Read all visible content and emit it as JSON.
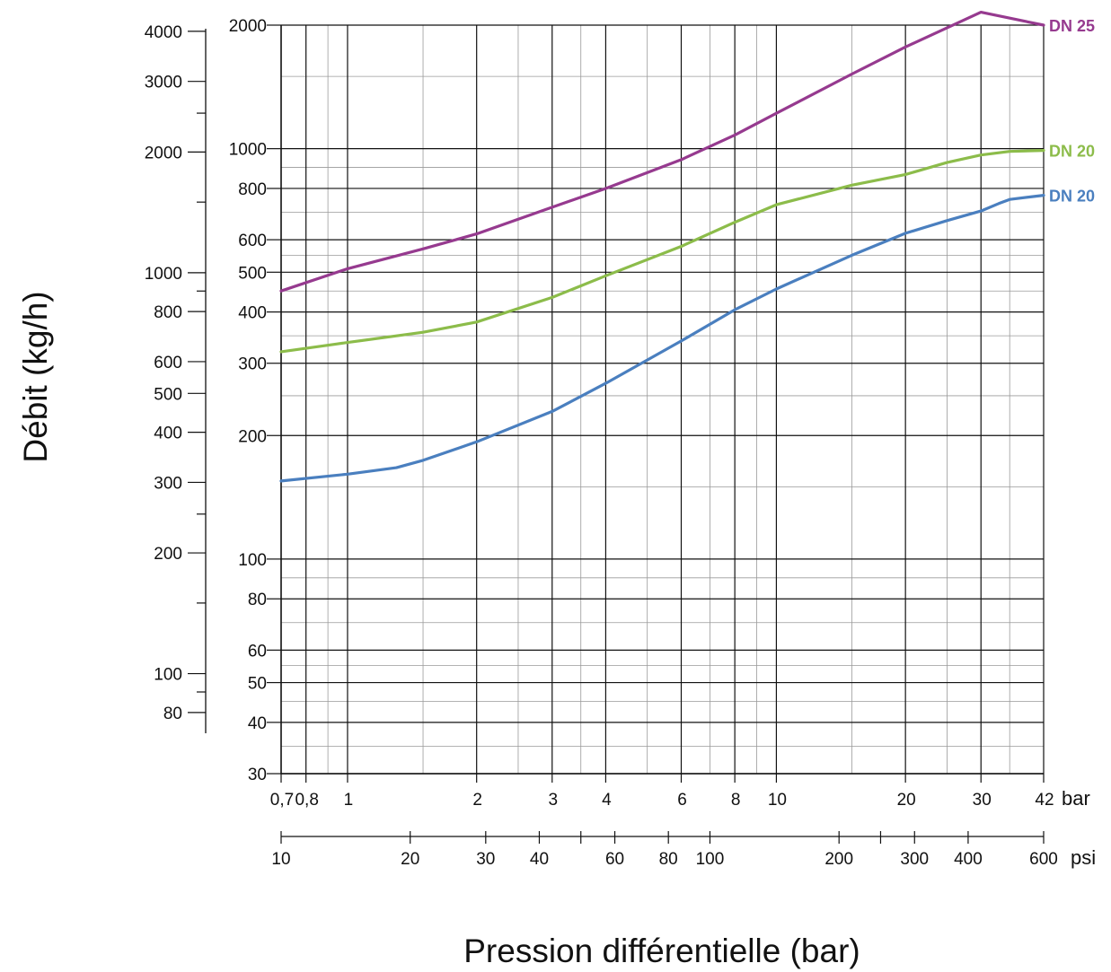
{
  "chart_data": {
    "type": "line",
    "xlabel": "Pression différentielle (bar)",
    "ylabel": "Débit (kg/h)",
    "x_scale": "log",
    "y_scale": "log",
    "xlim": [
      0.7,
      42
    ],
    "ylim": [
      30,
      2000
    ],
    "grid": true,
    "x_unit": "bar",
    "x_ticks": [
      {
        "value": 0.7,
        "label": "0,7"
      },
      {
        "value": 0.8,
        "label": "0,8"
      },
      {
        "value": 1,
        "label": "1"
      },
      {
        "value": 2,
        "label": "2"
      },
      {
        "value": 3,
        "label": "3"
      },
      {
        "value": 4,
        "label": "4"
      },
      {
        "value": 6,
        "label": "6"
      },
      {
        "value": 8,
        "label": "8"
      },
      {
        "value": 10,
        "label": "10"
      },
      {
        "value": 20,
        "label": "20"
      },
      {
        "value": 30,
        "label": "30"
      },
      {
        "value": 42,
        "label": "42"
      }
    ],
    "y_ticks": [
      {
        "value": 2000,
        "label": "2000"
      },
      {
        "value": 1000,
        "label": "1000"
      },
      {
        "value": 800,
        "label": "800"
      },
      {
        "value": 600,
        "label": "600"
      },
      {
        "value": 500,
        "label": "500"
      },
      {
        "value": 400,
        "label": "400"
      },
      {
        "value": 300,
        "label": "300"
      },
      {
        "value": 200,
        "label": "200"
      },
      {
        "value": 100,
        "label": "100"
      },
      {
        "value": 80,
        "label": "80"
      },
      {
        "value": 60,
        "label": "60"
      },
      {
        "value": 50,
        "label": "50"
      },
      {
        "value": 40,
        "label": "40"
      },
      {
        "value": 30,
        "label": "30"
      }
    ],
    "secondary_x_axis": {
      "unit": "psi",
      "lim": [
        10,
        600
      ],
      "ticks": [
        {
          "value": 10,
          "label": "10"
        },
        {
          "value": 20,
          "label": "20"
        },
        {
          "value": 30,
          "label": "30"
        },
        {
          "value": 40,
          "label": "40"
        },
        {
          "value": 60,
          "label": "60"
        },
        {
          "value": 80,
          "label": "80"
        },
        {
          "value": 100,
          "label": "100"
        },
        {
          "value": 200,
          "label": "200"
        },
        {
          "value": 300,
          "label": "300"
        },
        {
          "value": 400,
          "label": "400"
        },
        {
          "value": 600,
          "label": "600"
        }
      ],
      "minor_ticks": [
        50,
        250
      ]
    },
    "secondary_y_axis": {
      "lim": [
        71,
        4060
      ],
      "ticks": [
        {
          "value": 4000,
          "label": "4000"
        },
        {
          "value": 3000,
          "label": "3000"
        },
        {
          "value": 2000,
          "label": "2000"
        },
        {
          "value": 1000,
          "label": "1000"
        },
        {
          "value": 800,
          "label": "800"
        },
        {
          "value": 600,
          "label": "600"
        },
        {
          "value": 500,
          "label": "500"
        },
        {
          "value": 400,
          "label": "400"
        },
        {
          "value": 300,
          "label": "300"
        },
        {
          "value": 200,
          "label": "200"
        },
        {
          "value": 100,
          "label": "100"
        },
        {
          "value": 80,
          "label": "80"
        }
      ],
      "minor_ticks": [
        2500,
        1500,
        900,
        250,
        150,
        90
      ]
    },
    "series": [
      {
        "name": "DN 25",
        "color": "#963a8f",
        "x": [
          0.7,
          1,
          1.5,
          2,
          3,
          4,
          6,
          8,
          10,
          15,
          20,
          30,
          42
        ],
        "y": [
          450,
          510,
          570,
          620,
          720,
          800,
          940,
          1080,
          1220,
          1520,
          1770,
          2150,
          2000
        ]
      },
      {
        "name": "DN 20",
        "color": "#8cbc4a",
        "x": [
          0.7,
          1,
          1.5,
          2,
          3,
          4,
          6,
          8,
          10,
          15,
          20,
          25,
          30,
          35,
          42
        ],
        "y": [
          320,
          337,
          357,
          378,
          434,
          490,
          578,
          662,
          730,
          815,
          865,
          925,
          965,
          985,
          990
        ]
      },
      {
        "name": "DN 20",
        "color": "#4a7fbf",
        "x": [
          0.7,
          1,
          1.3,
          1.5,
          2,
          3,
          4,
          6,
          8,
          10,
          15,
          20,
          25,
          30,
          33,
          35,
          42
        ],
        "y": [
          155,
          161,
          167,
          174,
          193,
          229,
          268,
          340,
          405,
          455,
          550,
          622,
          668,
          705,
          735,
          752,
          770
        ]
      }
    ]
  }
}
